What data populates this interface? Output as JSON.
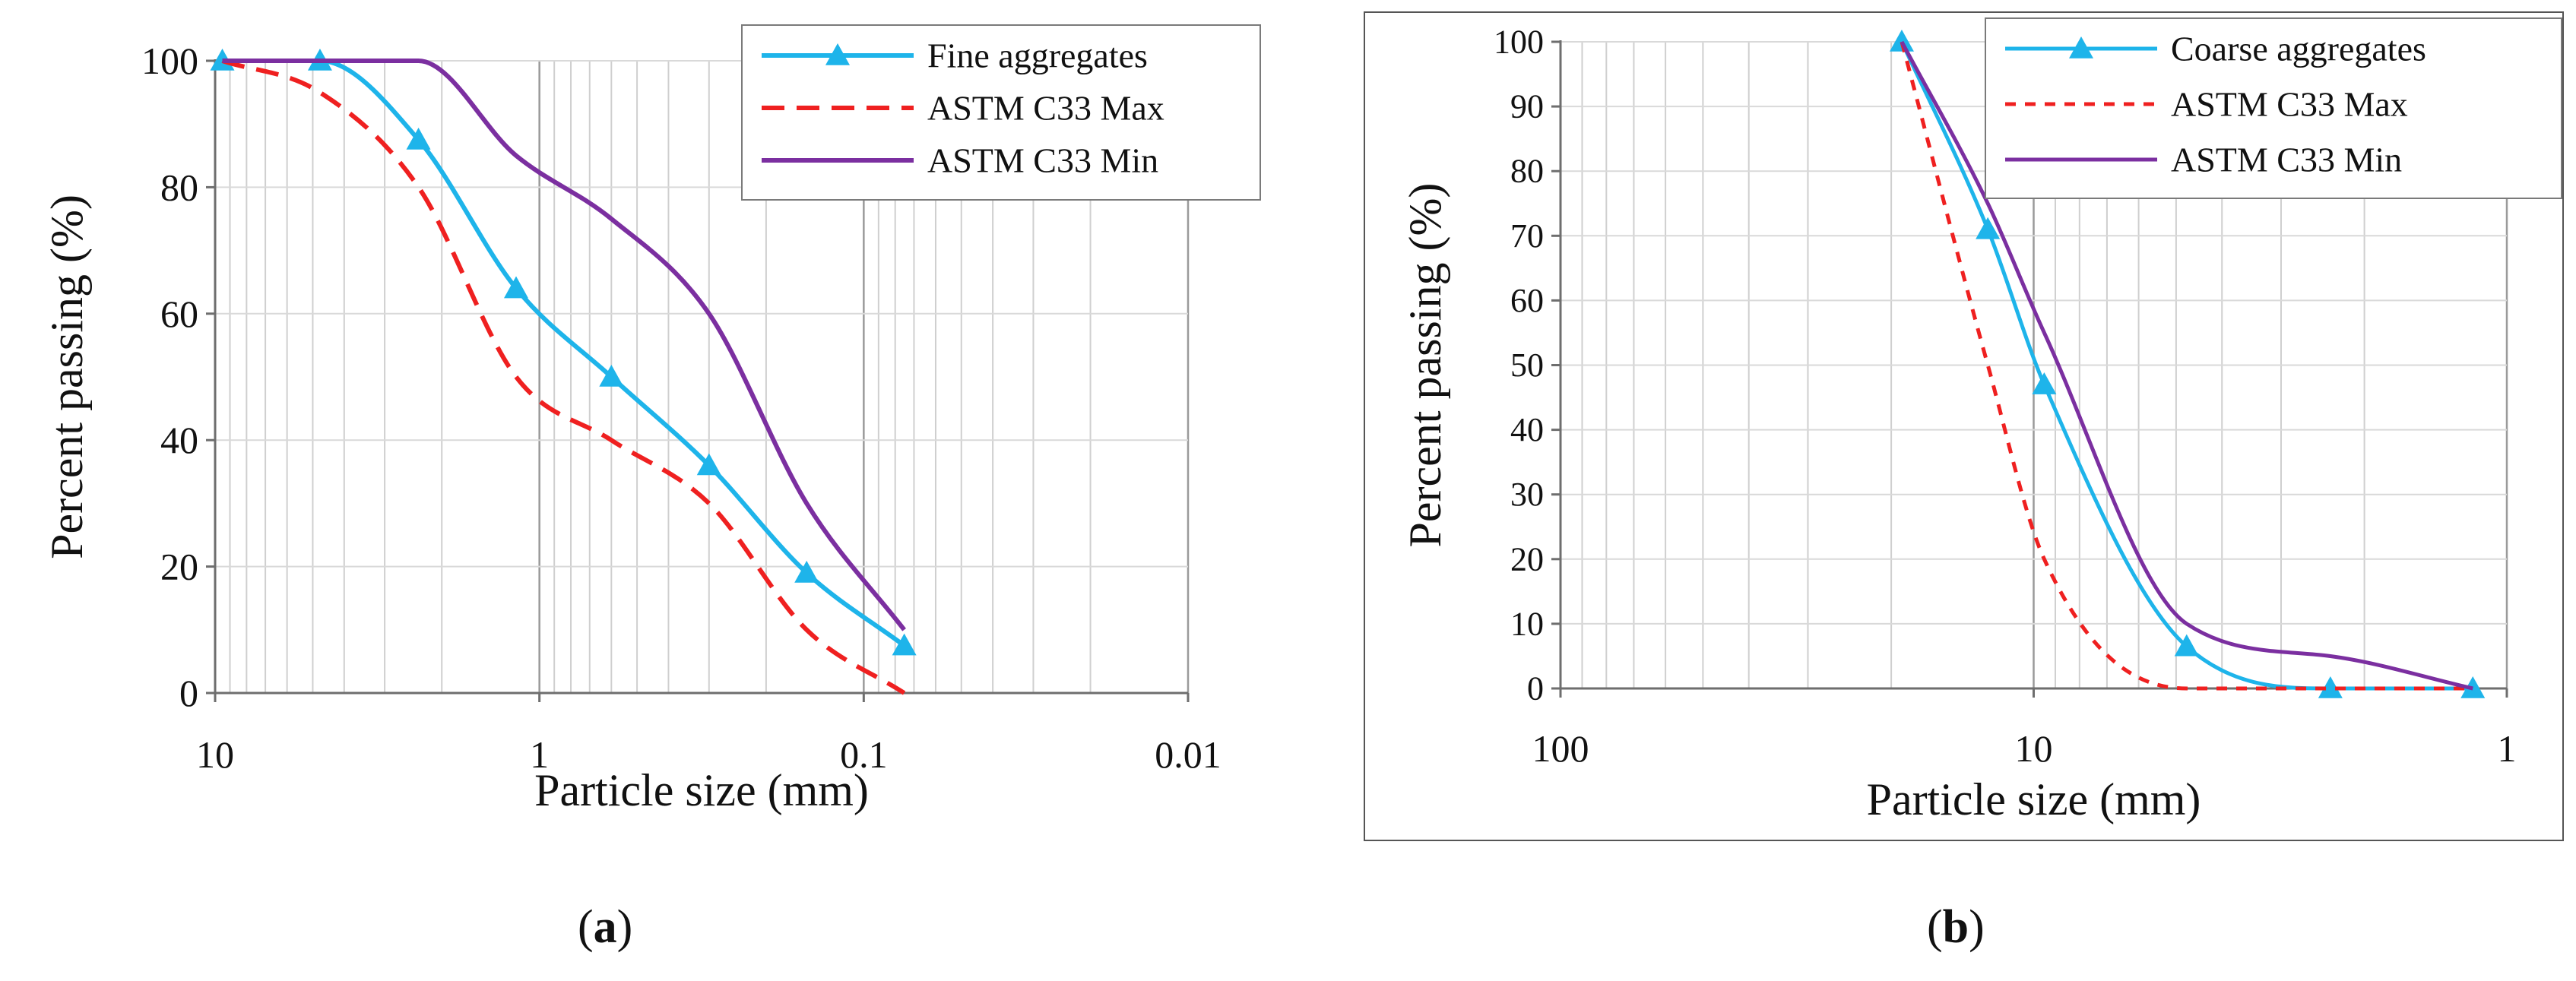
{
  "chart_data": [
    {
      "type": "line",
      "panel_label": "a",
      "xscale": "log",
      "x_reversed": true,
      "xlim": [
        10,
        0.01
      ],
      "ylim": [
        0,
        100
      ],
      "grid": true,
      "legend_position": "top-right",
      "xlabel": "Particle size (mm)",
      "ylabel": "Percent passing (%)",
      "x_ticks": [
        10,
        1,
        0.1,
        0.01
      ],
      "x_tick_labels": [
        "10",
        "1",
        "0.1",
        "0.01"
      ],
      "y_ticks": [
        0,
        20,
        40,
        60,
        80,
        100
      ],
      "y_tick_labels": [
        "0",
        "20",
        "40",
        "60",
        "80",
        "100"
      ],
      "series": [
        {
          "name": "Fine aggregates",
          "color": "#1EB4EA",
          "style": "solid",
          "marker": "triangle",
          "x": [
            9.5,
            4.75,
            2.36,
            1.18,
            0.6,
            0.3,
            0.15,
            0.075
          ],
          "y": [
            100,
            100,
            87.5,
            64,
            50,
            36,
            19,
            7.5
          ]
        },
        {
          "name": "ASTM C33 Max",
          "color": "#EF2020",
          "style": "dashed",
          "marker": "none",
          "x": [
            9.5,
            4.75,
            2.36,
            1.18,
            0.6,
            0.3,
            0.15,
            0.075
          ],
          "y": [
            100,
            95,
            80,
            50,
            40,
            30,
            10,
            0
          ]
        },
        {
          "name": "ASTM C33 Min",
          "color": "#7B2FA0",
          "style": "solid",
          "marker": "none",
          "x": [
            9.5,
            4.75,
            2.36,
            1.18,
            0.6,
            0.3,
            0.15,
            0.075
          ],
          "y": [
            100,
            100,
            100,
            85,
            75,
            60,
            30,
            10
          ]
        }
      ]
    },
    {
      "type": "line",
      "panel_label": "b",
      "xscale": "log",
      "x_reversed": true,
      "xlim": [
        100,
        1
      ],
      "ylim": [
        0,
        100
      ],
      "grid": true,
      "legend_position": "top-right",
      "xlabel": "Particle size (mm)",
      "ylabel": "Percent passing (%)",
      "x_ticks": [
        100,
        10,
        1
      ],
      "x_tick_labels": [
        "100",
        "10",
        "1"
      ],
      "y_ticks": [
        0,
        10,
        20,
        30,
        40,
        50,
        60,
        70,
        80,
        90,
        100
      ],
      "y_tick_labels": [
        "0",
        "10",
        "20",
        "30",
        "40",
        "50",
        "60",
        "70",
        "80",
        "90",
        "100"
      ],
      "series": [
        {
          "name": "Coarse aggregates",
          "color": "#1EB4EA",
          "style": "solid",
          "marker": "triangle",
          "x": [
            19,
            12.5,
            9.5,
            4.75,
            2.36,
            1.18
          ],
          "y": [
            100,
            71,
            47,
            6.5,
            0,
            0
          ]
        },
        {
          "name": "ASTM C33 Max",
          "color": "#EF2020",
          "style": "dotted",
          "marker": "none",
          "x": [
            19,
            12.5,
            9.5,
            4.75,
            2.36,
            1.18
          ],
          "y": [
            100,
            50,
            20,
            0,
            0,
            0
          ]
        },
        {
          "name": "ASTM C33 Min",
          "color": "#7B2FA0",
          "style": "solid",
          "marker": "none",
          "x": [
            19,
            12.5,
            9.5,
            4.75,
            2.36,
            1.18
          ],
          "y": [
            100,
            75,
            55,
            10,
            5,
            0
          ]
        }
      ]
    }
  ],
  "captions": {
    "left": "a",
    "right": "b"
  }
}
